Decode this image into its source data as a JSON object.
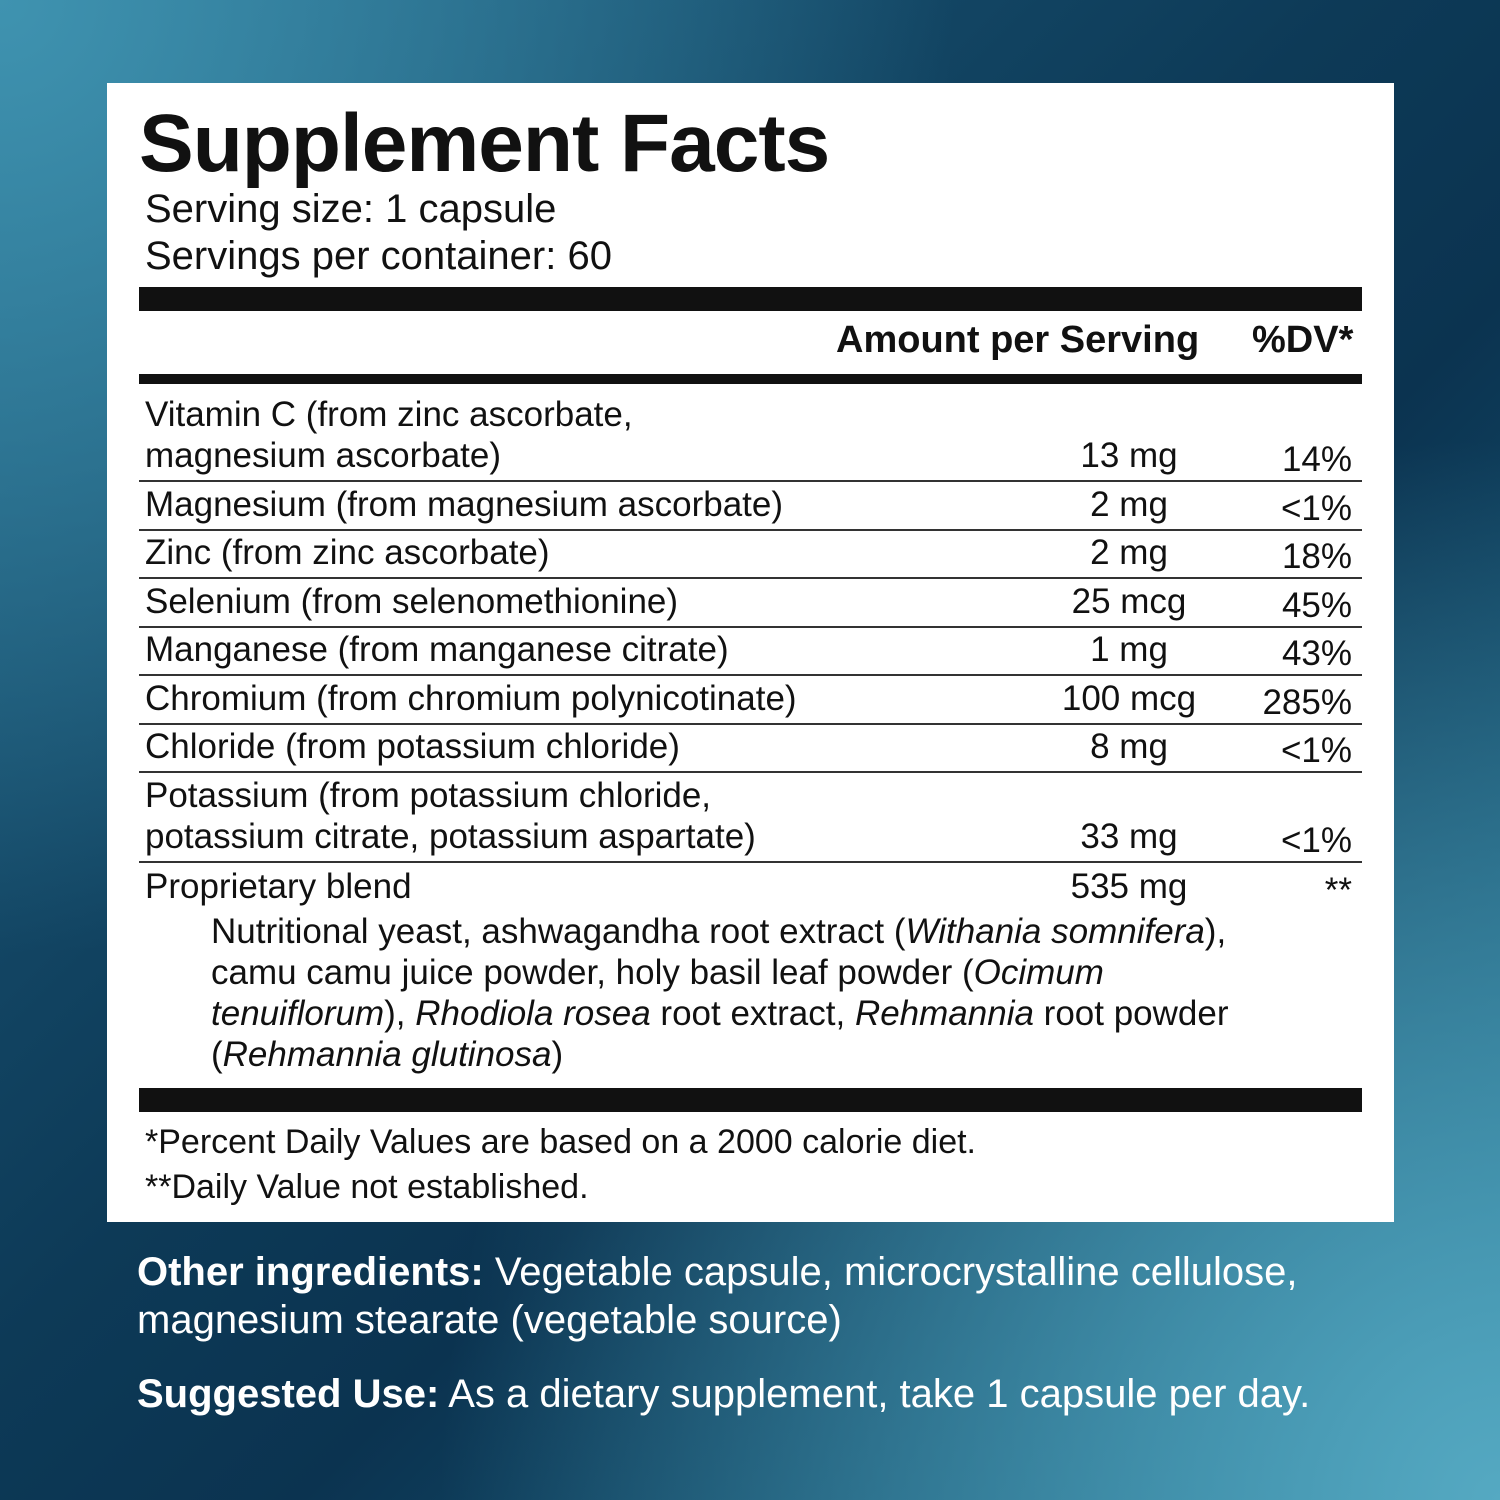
{
  "title": "Supplement Facts",
  "serving_size": "Serving size: 1 capsule",
  "servings_per_container": "Servings per container: 60",
  "header": {
    "amount": "Amount per Serving",
    "dv": "%DV*"
  },
  "rows": [
    {
      "name": "Vitamin C (from zinc ascorbate,",
      "name2": "magnesium ascorbate)",
      "amount": "13 mg",
      "dv": "14%"
    },
    {
      "name": "Magnesium (from magnesium ascorbate)",
      "amount": "2 mg",
      "dv": "<1%"
    },
    {
      "name": "Zinc (from zinc ascorbate)",
      "amount": "2 mg",
      "dv": "18%"
    },
    {
      "name": "Selenium (from selenomethionine)",
      "amount": "25 mcg",
      "dv": "45%"
    },
    {
      "name": "Manganese (from manganese citrate)",
      "amount": "1 mg",
      "dv": "43%"
    },
    {
      "name": "Chromium (from chromium polynicotinate)",
      "amount": "100 mcg",
      "dv": "285%"
    },
    {
      "name": "Chloride (from potassium chloride)",
      "amount": "8 mg",
      "dv": "<1%"
    },
    {
      "name": "Potassium (from potassium chloride,",
      "name2": "potassium citrate, potassium aspartate)",
      "amount": "33 mg",
      "dv": "<1%"
    }
  ],
  "blend": {
    "name": "Proprietary blend",
    "amount": "535 mg",
    "dv": "**",
    "t1": "Nutritional yeast, ashwagandha root extract (",
    "i1": "Withania somnifera",
    "t2": "),",
    "t3": "camu camu juice powder, holy basil leaf powder (",
    "i2": "Ocimum",
    "i3": "tenuiflorum",
    "t4": "), ",
    "i4": "Rhodiola rosea",
    "t5": " root extract, ",
    "i5": "Rehmannia",
    "t6": " root powder",
    "t7": "(",
    "i6": "Rehmannia glutinosa",
    "t8": ")"
  },
  "footnotes": [
    "*Percent Daily Values are based on a 2000 calorie diet.",
    "**Daily Value not established."
  ],
  "other_ingredients": {
    "label": "Other ingredients:",
    "text": " Vegetable capsule, microcrystalline cellulose, magnesium stearate (vegetable source)"
  },
  "suggested_use": {
    "label": "Suggested Use:",
    "text": " As a dietary supplement, take 1 capsule per day."
  }
}
